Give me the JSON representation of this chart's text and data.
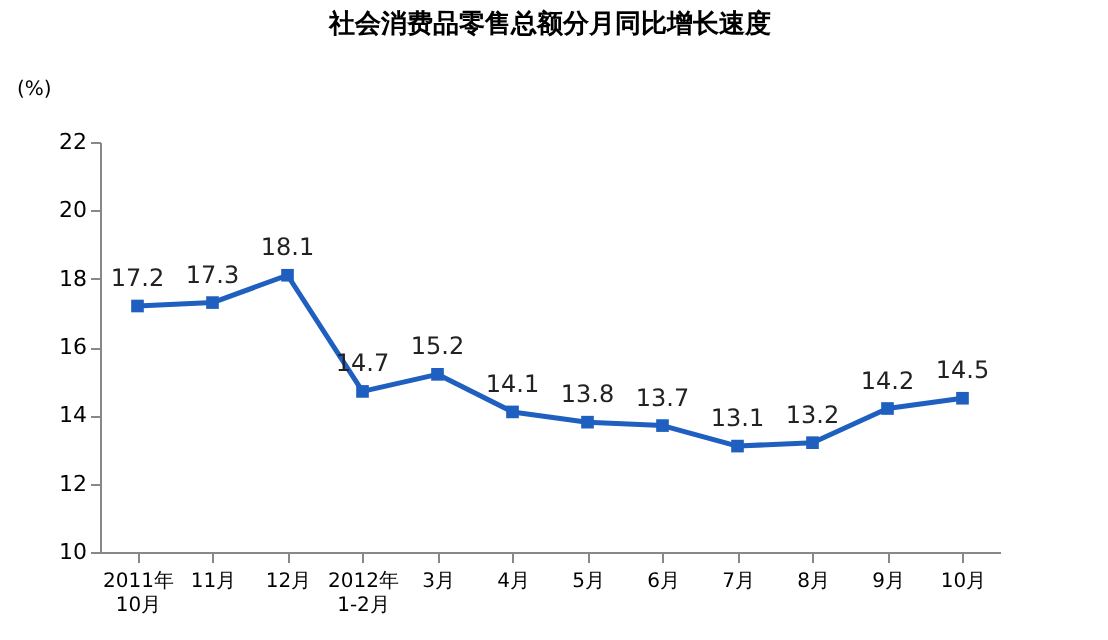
{
  "chart_data": {
    "type": "line",
    "title": "社会消费品零售总额分月同比增长速度",
    "ylabel": "(%)",
    "categories": [
      "2011年\n10月",
      "11月",
      "12月",
      "2012年\n1-2月",
      "3月",
      "4月",
      "5月",
      "6月",
      "7月",
      "8月",
      "9月",
      "10月"
    ],
    "series": [
      {
        "color": "#1f5fbf",
        "values": [
          17.2,
          17.3,
          18.1,
          14.7,
          15.2,
          14.1,
          13.8,
          13.7,
          13.1,
          13.2,
          14.2,
          14.5
        ]
      }
    ],
    "ylim": [
      10,
      22
    ],
    "yticks": [
      10,
      12,
      14,
      16,
      18,
      20,
      22
    ],
    "grid": false,
    "legend": false,
    "marker": "square",
    "line_style": "solid",
    "data_labels": true
  }
}
